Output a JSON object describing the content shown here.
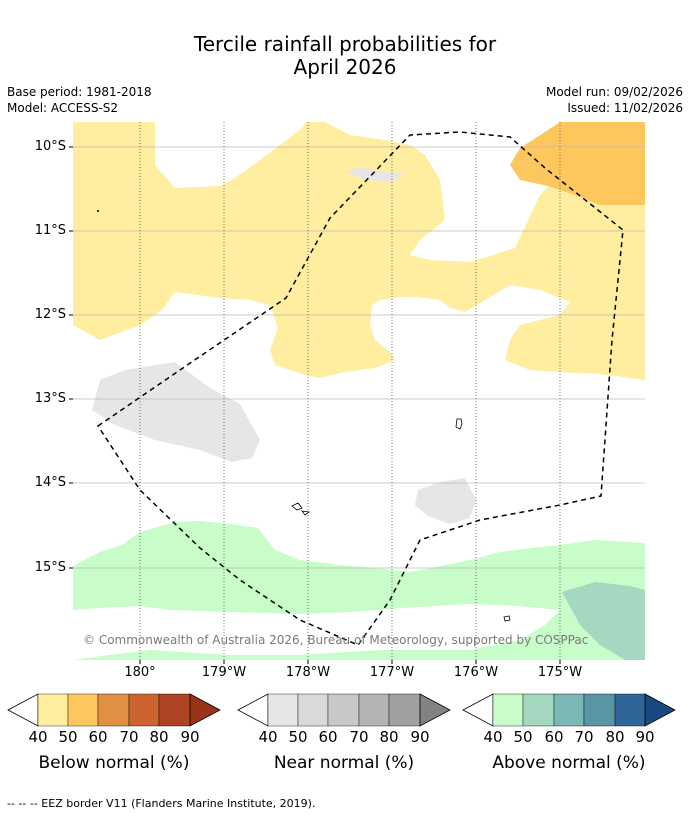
{
  "title": {
    "line1": "Tercile rainfall probabilities for",
    "line2": "April 2026"
  },
  "meta": {
    "base_period": "Base period: 1981-2018",
    "model": "Model: ACCESS-S2",
    "model_run": "Model run: 09/02/2026",
    "issued": "Issued: 11/02/2026"
  },
  "axes": {
    "lat_labels": [
      "10°S",
      "11°S",
      "12°S",
      "13°S",
      "14°S",
      "15°S"
    ],
    "lon_labels": [
      "180°",
      "179°W",
      "178°W",
      "177°W",
      "176°W",
      "175°W"
    ]
  },
  "copyright": "© Commonwealth of Australia 2026, Bureau of Meteorology, supported by COSPPac",
  "colorbars": [
    {
      "label": "Below normal (%)",
      "ticks": [
        "40",
        "50",
        "60",
        "70",
        "80",
        "90"
      ],
      "colors": [
        "#ffeda0",
        "#fec75e",
        "#e09045",
        "#cd632f",
        "#ad4423",
        "#9a3318"
      ]
    },
    {
      "label": "Near normal (%)",
      "ticks": [
        "40",
        "50",
        "60",
        "70",
        "80",
        "90"
      ],
      "colors": [
        "#e6e6e6",
        "#d9d9d9",
        "#c8c8c8",
        "#b4b4b4",
        "#a0a0a0",
        "#828282"
      ]
    },
    {
      "label": "Above normal (%)",
      "ticks": [
        "40",
        "50",
        "60",
        "70",
        "80",
        "90"
      ],
      "colors": [
        "#c8fcc8",
        "#a5d8c0",
        "#7bb8b5",
        "#5a95a5",
        "#2f6699",
        "#184a80"
      ]
    }
  ],
  "footnote": "--  --  -- EEZ border V11 (Flanders Marine Institute, 2019)."
}
